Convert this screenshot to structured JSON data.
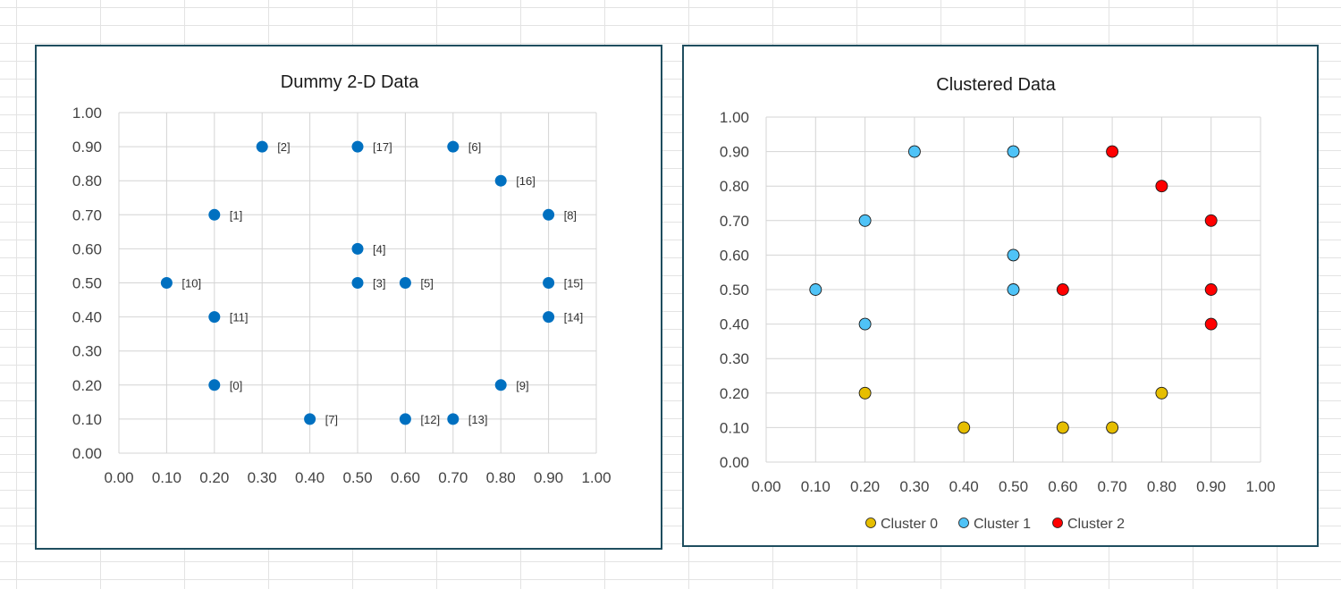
{
  "chart_data": [
    {
      "type": "scatter",
      "title": "Dummy 2-D Data",
      "xlim": [
        0,
        1
      ],
      "ylim": [
        0,
        1
      ],
      "grid": true,
      "tick_values": [
        0.0,
        0.1,
        0.2,
        0.3,
        0.4,
        0.5,
        0.6,
        0.7,
        0.8,
        0.9,
        1.0
      ],
      "tick_labels": [
        "0.00",
        "0.10",
        "0.20",
        "0.30",
        "0.40",
        "0.50",
        "0.60",
        "0.70",
        "0.80",
        "0.90",
        "1.00"
      ],
      "color": "#0070C0",
      "points": [
        {
          "label": "[0]",
          "x": 0.2,
          "y": 0.2
        },
        {
          "label": "[1]",
          "x": 0.2,
          "y": 0.7
        },
        {
          "label": "[2]",
          "x": 0.3,
          "y": 0.9
        },
        {
          "label": "[3]",
          "x": 0.5,
          "y": 0.5
        },
        {
          "label": "[4]",
          "x": 0.5,
          "y": 0.6
        },
        {
          "label": "[5]",
          "x": 0.6,
          "y": 0.5
        },
        {
          "label": "[6]",
          "x": 0.7,
          "y": 0.9
        },
        {
          "label": "[7]",
          "x": 0.4,
          "y": 0.1
        },
        {
          "label": "[8]",
          "x": 0.9,
          "y": 0.7
        },
        {
          "label": "[9]",
          "x": 0.8,
          "y": 0.2
        },
        {
          "label": "[10]",
          "x": 0.1,
          "y": 0.5
        },
        {
          "label": "[11]",
          "x": 0.2,
          "y": 0.4
        },
        {
          "label": "[12]",
          "x": 0.6,
          "y": 0.1
        },
        {
          "label": "[13]",
          "x": 0.7,
          "y": 0.1
        },
        {
          "label": "[14]",
          "x": 0.9,
          "y": 0.4
        },
        {
          "label": "[15]",
          "x": 0.9,
          "y": 0.5
        },
        {
          "label": "[16]",
          "x": 0.8,
          "y": 0.8
        },
        {
          "label": "[17]",
          "x": 0.5,
          "y": 0.9
        }
      ]
    },
    {
      "type": "scatter",
      "title": "Clustered Data",
      "xlim": [
        0,
        1
      ],
      "ylim": [
        0,
        1
      ],
      "grid": true,
      "legend": "bottom",
      "tick_values": [
        0.0,
        0.1,
        0.2,
        0.3,
        0.4,
        0.5,
        0.6,
        0.7,
        0.8,
        0.9,
        1.0
      ],
      "tick_labels": [
        "0.00",
        "0.10",
        "0.20",
        "0.30",
        "0.40",
        "0.50",
        "0.60",
        "0.70",
        "0.80",
        "0.90",
        "1.00"
      ],
      "series": [
        {
          "name": "Cluster 0",
          "color": "#E6BE00",
          "points": [
            {
              "x": 0.2,
              "y": 0.2
            },
            {
              "x": 0.4,
              "y": 0.1
            },
            {
              "x": 0.6,
              "y": 0.1
            },
            {
              "x": 0.7,
              "y": 0.1
            },
            {
              "x": 0.8,
              "y": 0.2
            }
          ]
        },
        {
          "name": "Cluster 1",
          "color": "#4FC3F7",
          "points": [
            {
              "x": 0.1,
              "y": 0.5
            },
            {
              "x": 0.2,
              "y": 0.4
            },
            {
              "x": 0.2,
              "y": 0.7
            },
            {
              "x": 0.3,
              "y": 0.9
            },
            {
              "x": 0.5,
              "y": 0.9
            },
            {
              "x": 0.5,
              "y": 0.6
            },
            {
              "x": 0.5,
              "y": 0.5
            }
          ]
        },
        {
          "name": "Cluster 2",
          "color": "#FF0000",
          "points": [
            {
              "x": 0.6,
              "y": 0.5
            },
            {
              "x": 0.7,
              "y": 0.9
            },
            {
              "x": 0.8,
              "y": 0.8
            },
            {
              "x": 0.9,
              "y": 0.7
            },
            {
              "x": 0.9,
              "y": 0.5
            },
            {
              "x": 0.9,
              "y": 0.4
            }
          ]
        }
      ]
    }
  ]
}
